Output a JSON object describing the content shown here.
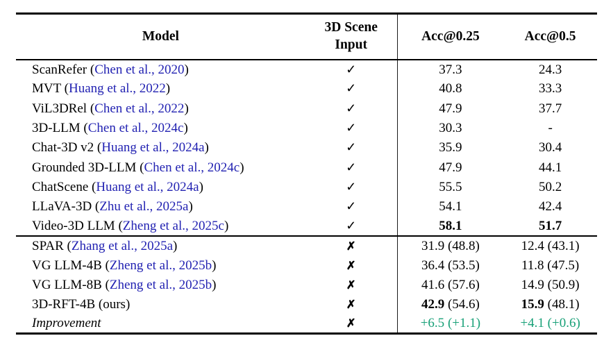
{
  "page": {
    "background": "#ffffff"
  },
  "colors": {
    "citation_blue": "#2222b2",
    "improvement_green": "#17a077",
    "text": "#000000"
  },
  "header": {
    "model": "Model",
    "scene_input_line1": "3D Scene",
    "scene_input_line2": "Input",
    "acc25": "Acc@0.25",
    "acc50": "Acc@0.5"
  },
  "symbols": {
    "check": "✓",
    "cross": "✗"
  },
  "sections": [
    {
      "name": "with-3d-scene-input",
      "rows": [
        {
          "model": "ScanRefer",
          "cite": "Chen et al., 2020",
          "scene_input": "check",
          "acc25": "37.3",
          "acc50": "24.3"
        },
        {
          "model": "MVT",
          "cite": "Huang et al., 2022",
          "scene_input": "check",
          "acc25": "40.8",
          "acc50": "33.3"
        },
        {
          "model": "ViL3DRel",
          "cite": "Chen et al., 2022",
          "scene_input": "check",
          "acc25": "47.9",
          "acc50": "37.7"
        },
        {
          "model": "3D-LLM",
          "cite": "Chen et al., 2024c",
          "scene_input": "check",
          "acc25": "30.3",
          "acc50": "-"
        },
        {
          "model": "Chat-3D v2",
          "cite": "Huang et al., 2024a",
          "scene_input": "check",
          "acc25": "35.9",
          "acc50": "30.4"
        },
        {
          "model": "Grounded 3D-LLM",
          "cite": "Chen et al., 2024c",
          "scene_input": "check",
          "acc25": "47.9",
          "acc50": "44.1"
        },
        {
          "model": "ChatScene",
          "cite": "Huang et al., 2024a",
          "scene_input": "check",
          "acc25": "55.5",
          "acc50": "50.2"
        },
        {
          "model": "LLaVA-3D",
          "cite": "Zhu et al., 2025a",
          "scene_input": "check",
          "acc25": "54.1",
          "acc50": "42.4"
        },
        {
          "model": "Video-3D LLM",
          "cite": "Zheng et al., 2025c",
          "scene_input": "check",
          "acc25": "58.1",
          "acc50": "51.7",
          "bold": true
        }
      ]
    },
    {
      "name": "without-3d-scene-input",
      "rows": [
        {
          "model": "SPAR",
          "cite": "Zhang et al., 2025a",
          "scene_input": "cross",
          "acc25": "31.9",
          "acc25_paren": "(48.8)",
          "acc50": "12.4",
          "acc50_paren": "(43.1)"
        },
        {
          "model": "VG LLM-4B",
          "cite": "Zheng et al., 2025b",
          "scene_input": "cross",
          "acc25": "36.4",
          "acc25_paren": "(53.5)",
          "acc50": "11.8",
          "acc50_paren": "(47.5)"
        },
        {
          "model": "VG LLM-8B",
          "cite": "Zheng et al., 2025b",
          "scene_input": "cross",
          "acc25": "41.6",
          "acc25_paren": "(57.6)",
          "acc50": "14.9",
          "acc50_paren": "(50.9)"
        },
        {
          "model": "3D-RFT-4B",
          "suffix": " (ours)",
          "scene_input": "cross",
          "acc25": "42.9",
          "acc25_paren": "(54.6)",
          "acc50": "15.9",
          "acc50_paren": "(48.1)",
          "bold": true
        },
        {
          "model": "Improvement",
          "scene_input": "cross",
          "acc25": "+6.5",
          "acc25_paren": "(+1.1)",
          "acc50": "+4.1",
          "acc50_paren": "(+0.6)",
          "italic": true,
          "green": true
        }
      ]
    }
  ]
}
